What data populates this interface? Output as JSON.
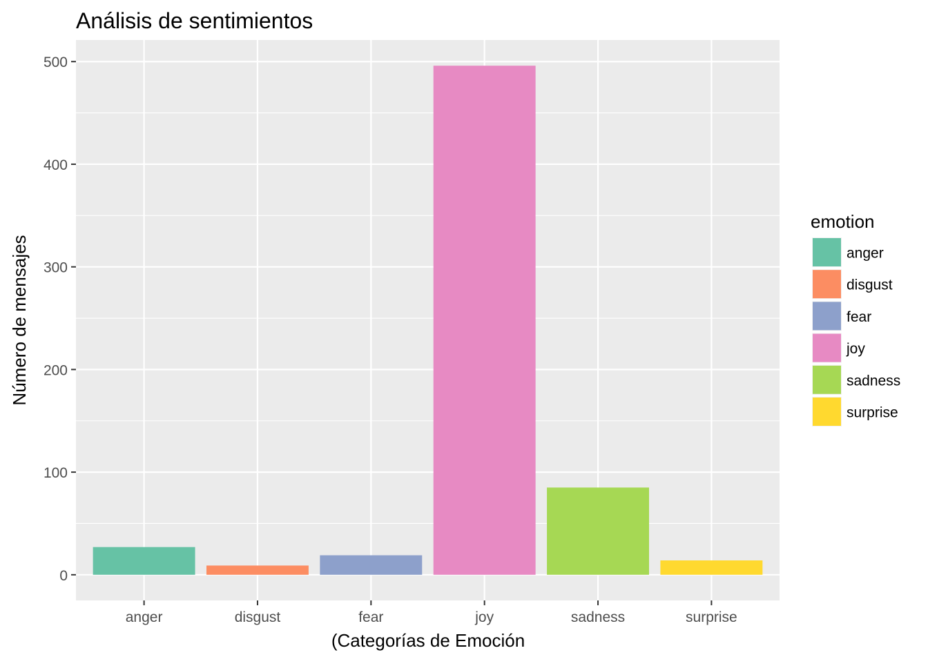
{
  "chart_data": {
    "type": "bar",
    "title": "Análisis de sentimientos",
    "xlabel": "(Categorías de Emoción",
    "ylabel": "Número de mensajes",
    "categories": [
      "anger",
      "disgust",
      "fear",
      "joy",
      "sadness",
      "surprise"
    ],
    "values": [
      27,
      9,
      19,
      496,
      85,
      14
    ],
    "colors": [
      "#66C2A5",
      "#FC8D62",
      "#8DA0CB",
      "#E78AC3",
      "#A6D854",
      "#FFD92F"
    ],
    "ylim": [
      -25,
      521
    ],
    "yticks": [
      0,
      100,
      200,
      300,
      400,
      500
    ],
    "grid": true,
    "panel_background": "#EBEBEB",
    "legend": {
      "title": "emotion",
      "position": "right",
      "items": [
        "anger",
        "disgust",
        "fear",
        "joy",
        "sadness",
        "surprise"
      ]
    }
  }
}
